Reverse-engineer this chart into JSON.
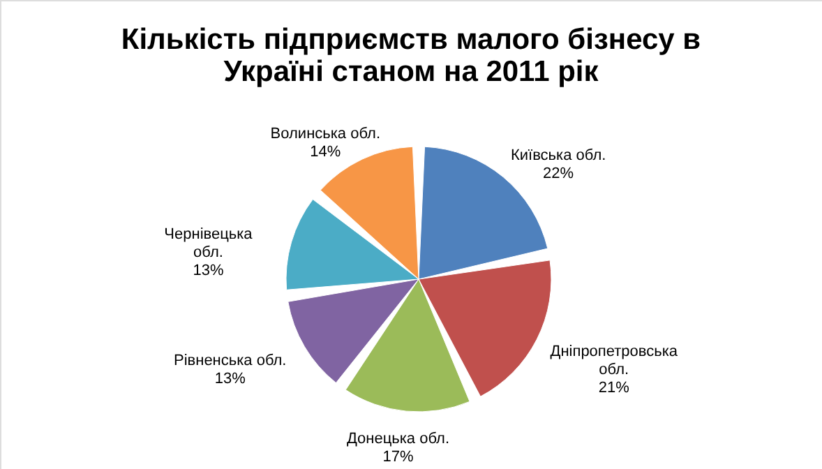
{
  "chart_data": {
    "type": "pie",
    "title": "Кількість підприємств малого бізнесу в Україні станом на 2011 рік",
    "categories": [
      "Київська обл.",
      "Дніпропетровська обл.",
      "Донецька обл.",
      "Рівненська обл.",
      "Чернівецька обл.",
      "Волинська обл."
    ],
    "values": [
      22,
      21,
      17,
      13,
      13,
      14
    ],
    "value_labels": [
      "22%",
      "21%",
      "17%",
      "13%",
      "13%",
      "14%"
    ],
    "colors": [
      "#4f81bd",
      "#c0504d",
      "#9bbb59",
      "#8064a2",
      "#4bacc6",
      "#f79646"
    ]
  }
}
